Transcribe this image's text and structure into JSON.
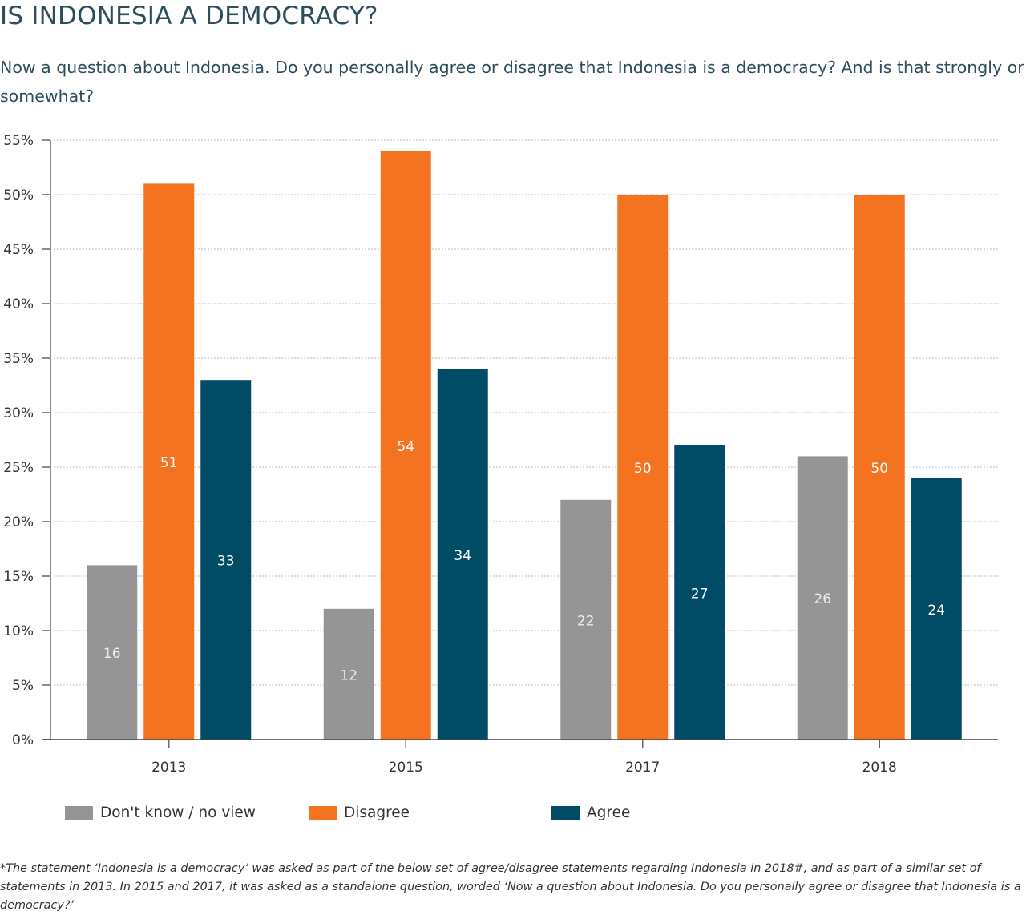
{
  "title": "IS INDONESIA A DEMOCRACY?",
  "subtitle": "Now a question about Indonesia. Do you personally agree or disagree that Indonesia is a democracy? And is that strongly or somewhat?",
  "footnote": "*The statement ‘Indonesia is a democracy’ was asked as part of the below set of agree/disagree statements regarding Indonesia in 2018#, and as part of a similar set of statements in 2013. In 2015 and 2017, it was asked as a standalone question, worded ‘Now a question about Indonesia. Do you personally agree or disagree that Indonesia is a democracy?’",
  "chart_data": {
    "type": "bar",
    "categories": [
      "2013",
      "2015",
      "2017",
      "2018"
    ],
    "series": [
      {
        "name": "Don't know / no view",
        "color": "#959595",
        "values": [
          16,
          12,
          22,
          26
        ]
      },
      {
        "name": "Disagree",
        "color": "#f47321",
        "values": [
          51,
          54,
          50,
          50
        ]
      },
      {
        "name": "Agree",
        "color": "#004c66",
        "values": [
          33,
          34,
          27,
          24
        ]
      }
    ],
    "ylim": [
      0,
      55
    ],
    "yticks": [
      "0%",
      "5%",
      "10%",
      "15%",
      "20%",
      "25%",
      "30%",
      "35%",
      "40%",
      "45%",
      "50%",
      "55%"
    ],
    "grid": true,
    "legend_position": "bottom"
  }
}
